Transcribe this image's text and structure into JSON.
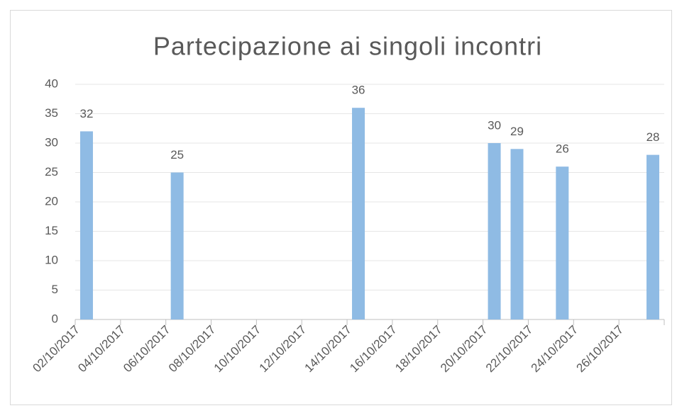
{
  "chart_data": {
    "type": "bar",
    "title": "Partecipazione ai singoli incontri",
    "x": [
      "02/10/2017",
      "06/10/2017",
      "14/10/2017",
      "20/10/2017",
      "21/10/2017",
      "23/10/2017",
      "27/10/2017"
    ],
    "values": [
      32,
      25,
      36,
      30,
      29,
      26,
      28
    ],
    "color": "#8fbbe4",
    "xlim": [
      "02/10/2017",
      "28/10/2017"
    ],
    "xticks": [
      "02/10/2017",
      "04/10/2017",
      "06/10/2017",
      "08/10/2017",
      "10/10/2017",
      "12/10/2017",
      "14/10/2017",
      "16/10/2017",
      "18/10/2017",
      "20/10/2017",
      "22/10/2017",
      "24/10/2017",
      "26/10/2017"
    ],
    "ylim": [
      0,
      40
    ],
    "yticks": [
      0,
      5,
      10,
      15,
      20,
      25,
      30,
      35,
      40
    ],
    "grid": true
  }
}
